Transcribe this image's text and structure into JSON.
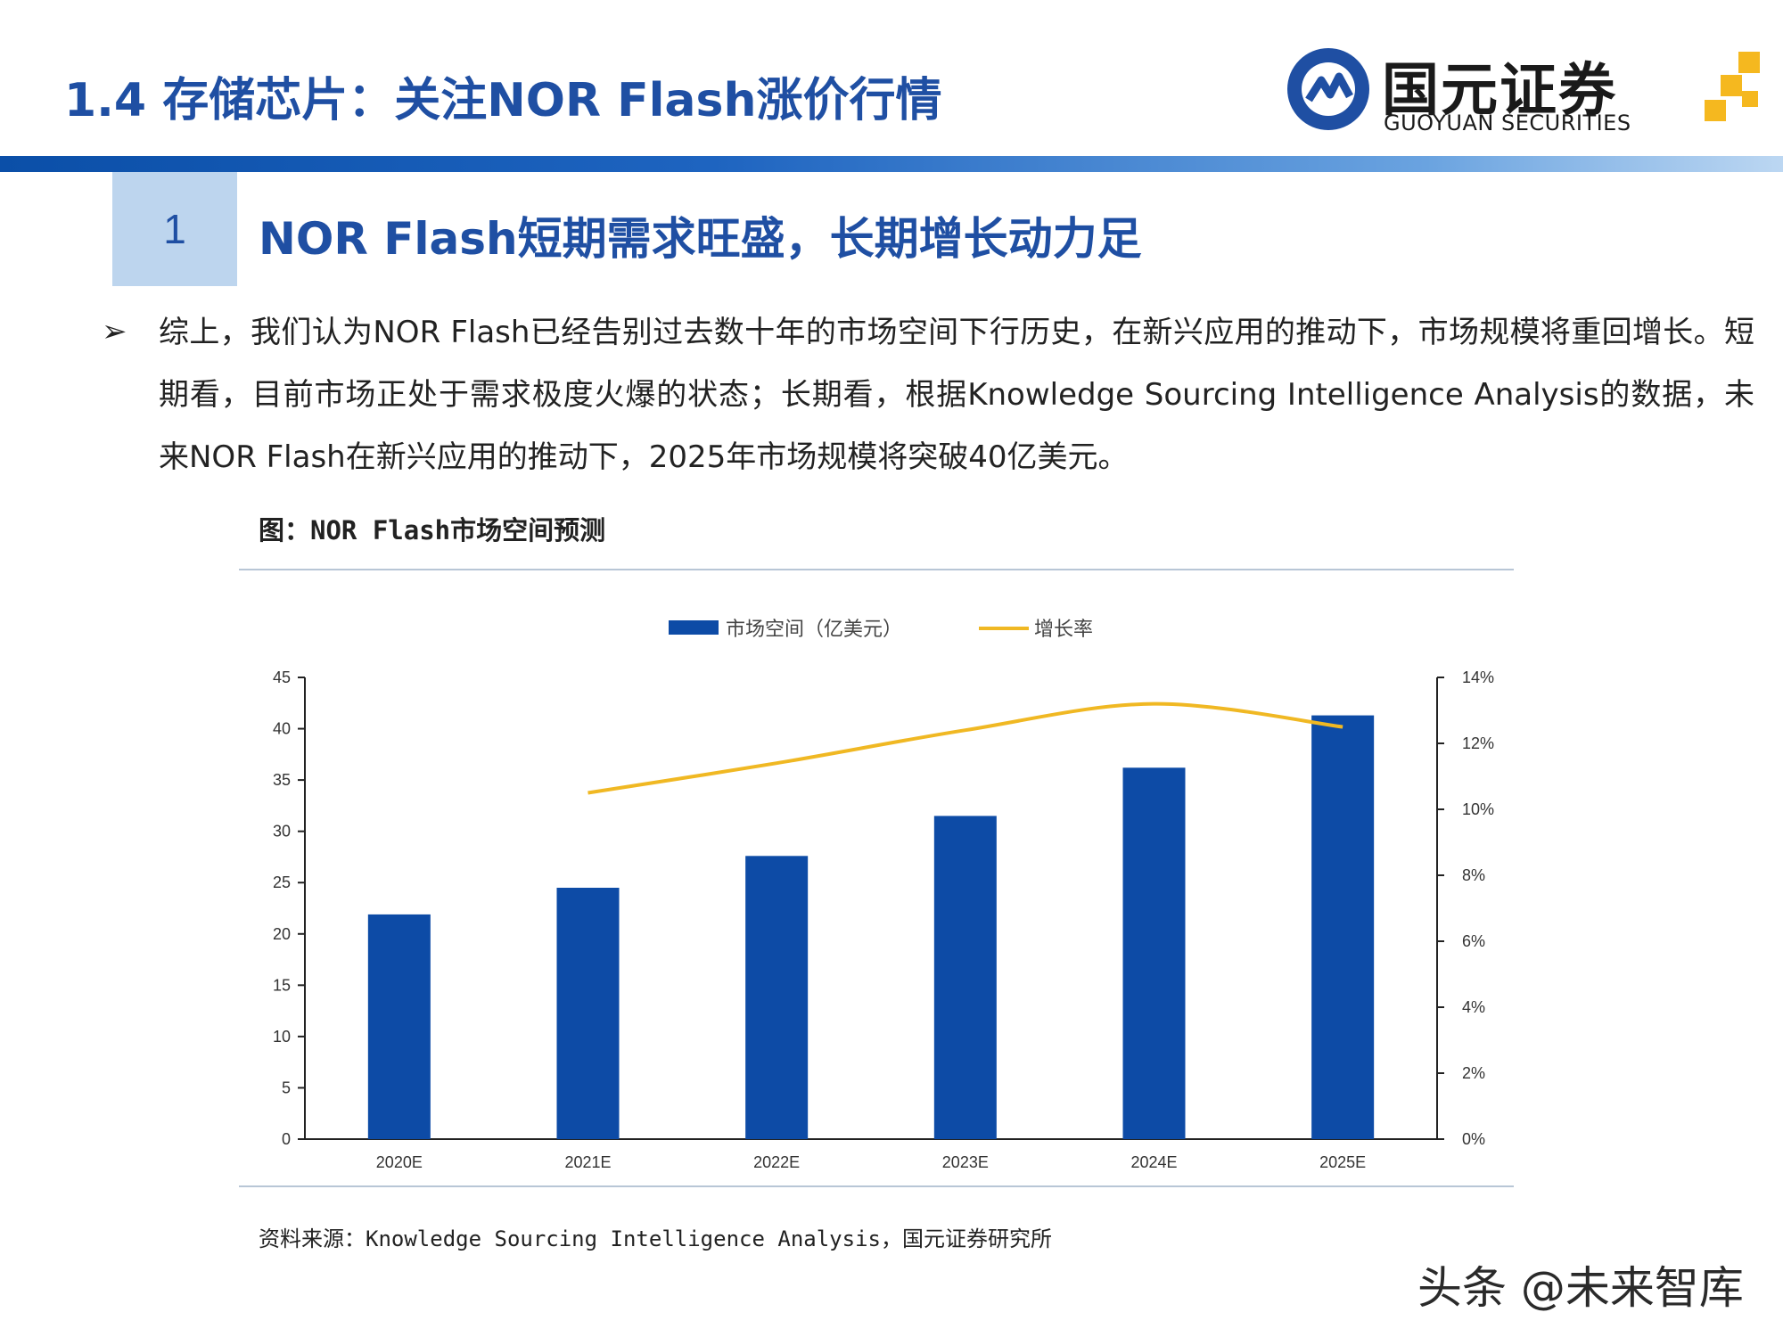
{
  "header": {
    "page_title": "1.4 存储芯片：关注NOR Flash涨价行情",
    "logo_cn": "国元证券",
    "logo_en": "GUOYUAN SECURITIES"
  },
  "section": {
    "number": "1",
    "title": "NOR Flash短期需求旺盛，长期增长动力足"
  },
  "body": {
    "bullet_text": "综上，我们认为NOR Flash已经告别过去数十年的市场空间下行历史，在新兴应用的推动下，市场规模将重回增长。短期看，目前市场正处于需求极度火爆的状态；长期看，根据Knowledge Sourcing Intelligence Analysis的数据，未来NOR Flash在新兴应用的推动下，2025年市场规模将突破40亿美元。"
  },
  "figure": {
    "caption": "图：NOR Flash市场空间预测",
    "source": "资料来源：Knowledge Sourcing Intelligence Analysis，国元证券研究所"
  },
  "chart_data": {
    "type": "bar",
    "categories": [
      "2020E",
      "2021E",
      "2022E",
      "2023E",
      "2024E",
      "2025E"
    ],
    "series": [
      {
        "name": "市场空间（亿美元）",
        "type": "bar",
        "axis": "left",
        "values": [
          21.9,
          24.5,
          27.6,
          31.5,
          36.2,
          41.3
        ],
        "color": "#0d4ba6"
      },
      {
        "name": "增长率",
        "type": "line",
        "axis": "right",
        "values": [
          null,
          10.5,
          11.4,
          12.4,
          13.2,
          12.5
        ],
        "color": "#f0b823"
      }
    ],
    "y_left": {
      "min": 0,
      "max": 45,
      "ticks": [
        "0",
        "5",
        "10",
        "15",
        "20",
        "25",
        "30",
        "35",
        "40",
        "45"
      ]
    },
    "y_right": {
      "min": 0,
      "max": 14,
      "ticks": [
        "0%",
        "2%",
        "4%",
        "6%",
        "8%",
        "10%",
        "12%",
        "14%"
      ]
    },
    "legend_position": "top-center",
    "grid": false
  },
  "watermark": "头条 @未来智库",
  "colors": {
    "brand_blue": "#1f4fa3",
    "bar_blue": "#0d4ba6",
    "line_gold": "#f0b823",
    "section_box": "#bdd5ee"
  }
}
